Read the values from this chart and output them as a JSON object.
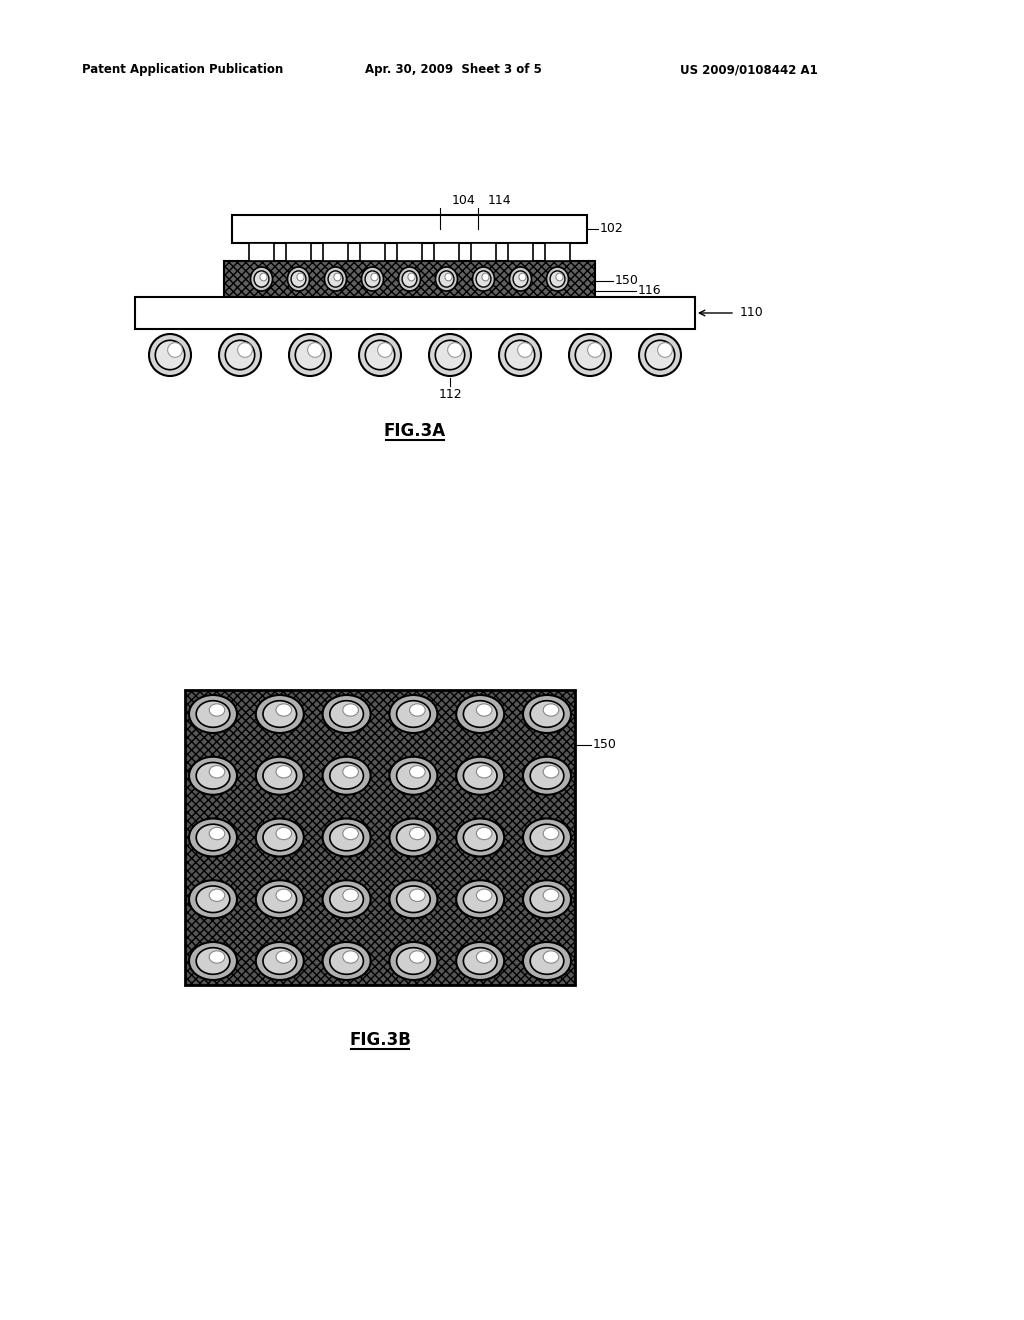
{
  "bg_color": "#ffffff",
  "header_left": "Patent Application Publication",
  "header_mid": "Apr. 30, 2009  Sheet 3 of 5",
  "header_right": "US 2009/0108442 A1",
  "fig3a_label": "FIG.3A",
  "fig3b_label": "FIG.3B",
  "label_104": "104",
  "label_114": "114",
  "label_102": "102",
  "label_150": "150",
  "label_116": "116",
  "label_110": "110",
  "label_112": "112",
  "label_150b": "150"
}
